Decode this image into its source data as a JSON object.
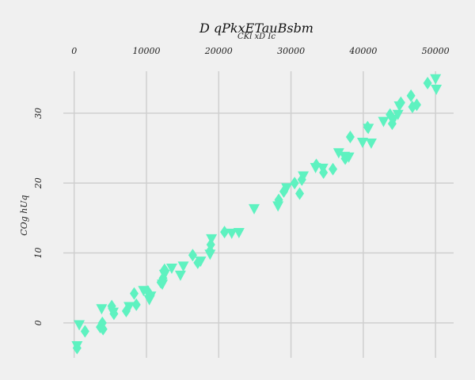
{
  "chart_data": {
    "type": "scatter",
    "title": "D qPkxETauBsbm",
    "subtitle": "CKl xD Ic",
    "xlabel": "",
    "ylabel": "COg hUq",
    "xlim": [
      -1500,
      52500
    ],
    "ylim": [
      -5,
      36
    ],
    "xticks": [
      0,
      10000,
      20000,
      30000,
      40000,
      50000
    ],
    "yticks": [
      0,
      10,
      20,
      30
    ],
    "x_axis_position": "top",
    "grid": true,
    "legend": "none",
    "marker_color": "#5ef2c0",
    "series": [
      {
        "marker": "diamond",
        "points": [
          [
            400,
            -3.6
          ],
          [
            1500,
            -1.2
          ],
          [
            3600,
            -0.6
          ],
          [
            3900,
            0
          ],
          [
            4000,
            -0.9
          ],
          [
            5200,
            2.4
          ],
          [
            5500,
            1.3
          ],
          [
            7200,
            1.7
          ],
          [
            8300,
            4.2
          ],
          [
            8600,
            2.6
          ],
          [
            10200,
            4.5
          ],
          [
            10500,
            3.8
          ],
          [
            12000,
            5.8
          ],
          [
            12300,
            6.4
          ],
          [
            12500,
            7.6
          ],
          [
            16400,
            9.7
          ],
          [
            17100,
            8.6
          ],
          [
            18800,
            10.3
          ],
          [
            18900,
            11.2
          ],
          [
            20800,
            13.0
          ],
          [
            28300,
            17.6
          ],
          [
            29000,
            18.8
          ],
          [
            30500,
            20.0
          ],
          [
            31200,
            18.5
          ],
          [
            31500,
            20.5
          ],
          [
            33500,
            22.6
          ],
          [
            34500,
            21.5
          ],
          [
            35800,
            22.0
          ],
          [
            37500,
            23.5
          ],
          [
            38200,
            26.6
          ],
          [
            40600,
            28.0
          ],
          [
            43700,
            29.8
          ],
          [
            44000,
            28.5
          ],
          [
            45200,
            31.5
          ],
          [
            46600,
            32.5
          ],
          [
            46800,
            30.9
          ],
          [
            47400,
            31.2
          ],
          [
            48900,
            34.3
          ]
        ]
      },
      {
        "marker": "triangle-down",
        "points": [
          [
            400,
            -3.3
          ],
          [
            700,
            -0.3
          ],
          [
            3800,
            2.0
          ],
          [
            5400,
            1.5
          ],
          [
            7600,
            2.3
          ],
          [
            9600,
            4.6
          ],
          [
            10400,
            3.3
          ],
          [
            10600,
            3.8
          ],
          [
            12200,
            5.5
          ],
          [
            12500,
            6.9
          ],
          [
            13500,
            7.8
          ],
          [
            14700,
            6.8
          ],
          [
            15100,
            8.1
          ],
          [
            17500,
            8.8
          ],
          [
            18800,
            9.8
          ],
          [
            19000,
            12.0
          ],
          [
            21800,
            12.8
          ],
          [
            22800,
            12.9
          ],
          [
            24900,
            16.3
          ],
          [
            28200,
            16.7
          ],
          [
            29400,
            19.3
          ],
          [
            31700,
            21.0
          ],
          [
            33400,
            22.2
          ],
          [
            34400,
            22.1
          ],
          [
            36600,
            24.3
          ],
          [
            37400,
            23.8
          ],
          [
            38000,
            23.7
          ],
          [
            39900,
            25.8
          ],
          [
            40700,
            27.8
          ],
          [
            41100,
            25.7
          ],
          [
            42800,
            28.8
          ],
          [
            44200,
            29.1
          ],
          [
            44800,
            29.8
          ],
          [
            45000,
            31.0
          ],
          [
            50000,
            34.9
          ],
          [
            50100,
            33.4
          ]
        ]
      }
    ]
  }
}
